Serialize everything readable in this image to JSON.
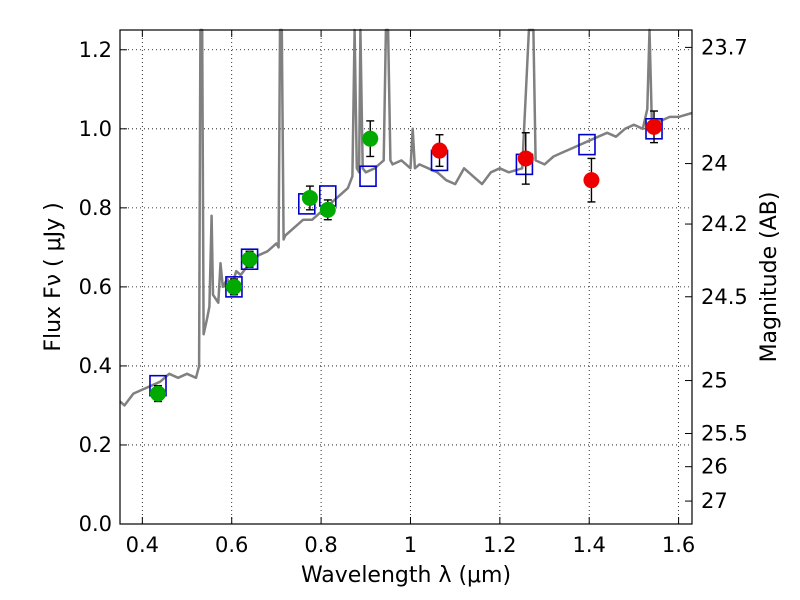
{
  "chart_data": {
    "type": "scatter",
    "title": "",
    "xlabel": "Wavelength  λ (μm)",
    "ylabel": "Flux  Fν  ( μJy )",
    "ylabel2": "Magnitude (AB)",
    "xlim": [
      0.35,
      1.63
    ],
    "ylim": [
      0.0,
      1.25
    ],
    "grid": true,
    "grid_style": "dotted",
    "x_ticks": [
      0.4,
      0.6,
      0.8,
      1.0,
      1.2,
      1.4,
      1.6
    ],
    "x_tick_labels": [
      "0.4",
      "0.6",
      "0.8",
      "1",
      "1.2",
      "1.4",
      "1.6"
    ],
    "y_ticks": [
      0.0,
      0.2,
      0.4,
      0.6,
      0.8,
      1.0,
      1.2
    ],
    "y_tick_labels": [
      "0.0",
      "0.2",
      "0.4",
      "0.6",
      "0.8",
      "1.0",
      "1.2"
    ],
    "y2_ticks": [
      {
        "label": "23.7",
        "flux": 1.206
      },
      {
        "label": "24",
        "flux": 0.912
      },
      {
        "label": "24.2",
        "flux": 0.759
      },
      {
        "label": "24.5",
        "flux": 0.575
      },
      {
        "label": "25",
        "flux": 0.363
      },
      {
        "label": "25.5",
        "flux": 0.229
      },
      {
        "label": "26",
        "flux": 0.145
      },
      {
        "label": "27",
        "flux": 0.058
      }
    ],
    "series": [
      {
        "kind": "line",
        "color": "#808080",
        "points": [
          [
            0.35,
            0.31
          ],
          [
            0.36,
            0.3
          ],
          [
            0.38,
            0.33
          ],
          [
            0.4,
            0.34
          ],
          [
            0.42,
            0.35
          ],
          [
            0.44,
            0.36
          ],
          [
            0.46,
            0.38
          ],
          [
            0.48,
            0.37
          ],
          [
            0.5,
            0.38
          ],
          [
            0.52,
            0.37
          ],
          [
            0.527,
            0.4
          ],
          [
            0.53,
            1.25
          ],
          [
            0.534,
            1.25
          ],
          [
            0.537,
            0.48
          ],
          [
            0.545,
            0.52
          ],
          [
            0.55,
            0.55
          ],
          [
            0.555,
            0.78
          ],
          [
            0.558,
            0.58
          ],
          [
            0.57,
            0.56
          ],
          [
            0.575,
            0.66
          ],
          [
            0.58,
            0.6
          ],
          [
            0.59,
            0.62
          ],
          [
            0.6,
            0.6
          ],
          [
            0.61,
            0.64
          ],
          [
            0.62,
            0.63
          ],
          [
            0.64,
            0.66
          ],
          [
            0.66,
            0.68
          ],
          [
            0.68,
            0.69
          ],
          [
            0.7,
            0.71
          ],
          [
            0.705,
            0.7
          ],
          [
            0.708,
            1.25
          ],
          [
            0.712,
            1.25
          ],
          [
            0.716,
            0.72
          ],
          [
            0.72,
            0.73
          ],
          [
            0.74,
            0.75
          ],
          [
            0.76,
            0.77
          ],
          [
            0.78,
            0.77
          ],
          [
            0.8,
            0.79
          ],
          [
            0.82,
            0.81
          ],
          [
            0.84,
            0.83
          ],
          [
            0.86,
            0.85
          ],
          [
            0.87,
            0.88
          ],
          [
            0.875,
            1.25
          ],
          [
            0.88,
            0.9
          ],
          [
            0.885,
            0.89
          ],
          [
            0.888,
            1.25
          ],
          [
            0.893,
            0.9
          ],
          [
            0.9,
            0.89
          ],
          [
            0.92,
            0.9
          ],
          [
            0.94,
            0.92
          ],
          [
            0.945,
            1.25
          ],
          [
            0.95,
            1.25
          ],
          [
            0.955,
            0.92
          ],
          [
            0.96,
            0.91
          ],
          [
            0.98,
            0.92
          ],
          [
            1.0,
            0.9
          ],
          [
            1.005,
            1.0
          ],
          [
            1.01,
            0.9
          ],
          [
            1.02,
            0.91
          ],
          [
            1.04,
            0.9
          ],
          [
            1.06,
            0.89
          ],
          [
            1.08,
            0.87
          ],
          [
            1.1,
            0.86
          ],
          [
            1.12,
            0.9
          ],
          [
            1.14,
            0.88
          ],
          [
            1.16,
            0.86
          ],
          [
            1.18,
            0.89
          ],
          [
            1.2,
            0.9
          ],
          [
            1.22,
            0.89
          ],
          [
            1.25,
            0.9
          ],
          [
            1.265,
            1.25
          ],
          [
            1.275,
            1.25
          ],
          [
            1.28,
            0.92
          ],
          [
            1.3,
            0.91
          ],
          [
            1.32,
            0.93
          ],
          [
            1.34,
            0.94
          ],
          [
            1.36,
            0.95
          ],
          [
            1.38,
            0.96
          ],
          [
            1.4,
            0.97
          ],
          [
            1.42,
            0.98
          ],
          [
            1.44,
            0.99
          ],
          [
            1.46,
            0.98
          ],
          [
            1.48,
            1.0
          ],
          [
            1.5,
            1.01
          ],
          [
            1.52,
            1.0
          ],
          [
            1.53,
            1.05
          ],
          [
            1.535,
            1.25
          ],
          [
            1.54,
            1.02
          ],
          [
            1.56,
            1.02
          ],
          [
            1.58,
            1.03
          ],
          [
            1.6,
            1.03
          ],
          [
            1.63,
            1.04
          ]
        ]
      },
      {
        "kind": "squares",
        "color": "#0000cc",
        "points": [
          [
            0.435,
            0.35
          ],
          [
            0.605,
            0.6
          ],
          [
            0.64,
            0.67
          ],
          [
            0.768,
            0.81
          ],
          [
            0.815,
            0.83
          ],
          [
            0.905,
            0.88
          ],
          [
            1.065,
            0.92
          ],
          [
            1.255,
            0.91
          ],
          [
            1.395,
            0.96
          ],
          [
            1.545,
            1.0
          ]
        ]
      },
      {
        "kind": "points",
        "color": "#00aa00",
        "points": [
          [
            0.435,
            0.33,
            0.02
          ],
          [
            0.605,
            0.6,
            0.02
          ],
          [
            0.64,
            0.67,
            0.02
          ],
          [
            0.775,
            0.825,
            0.03
          ],
          [
            0.815,
            0.795,
            0.025
          ],
          [
            0.91,
            0.975,
            0.045
          ]
        ]
      },
      {
        "kind": "points",
        "color": "#ee0000",
        "points": [
          [
            1.065,
            0.945,
            0.04
          ],
          [
            1.258,
            0.925,
            0.065
          ],
          [
            1.405,
            0.87,
            0.055
          ],
          [
            1.545,
            1.005,
            0.04
          ]
        ]
      }
    ]
  }
}
